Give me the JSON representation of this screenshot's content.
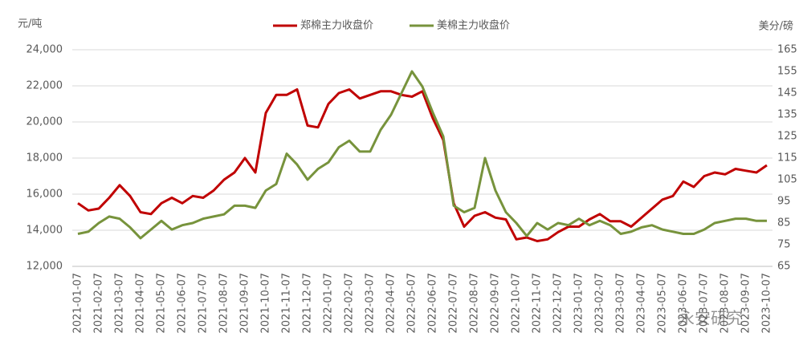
{
  "chart_data": {
    "type": "line",
    "y_label": "元/吨",
    "y2_label": "美分/磅",
    "watermark": "永安研究",
    "categories": [
      "2021-01-07",
      null,
      "2021-02-07",
      null,
      "2021-03-07",
      null,
      "2021-04-07",
      null,
      "2021-05-07",
      null,
      "2021-06-07",
      null,
      "2021-07-07",
      null,
      "2021-08-07",
      null,
      "2021-09-07",
      null,
      "2021-10-07",
      null,
      "2021-11-07",
      null,
      "2021-12-07",
      null,
      "2022-01-07",
      null,
      "2022-02-07",
      null,
      "2022-03-07",
      null,
      "2022-04-07",
      null,
      "2022-05-07",
      null,
      "2022-06-07",
      null,
      "2022-07-07",
      null,
      "2022-08-07",
      null,
      "2022-09-07",
      null,
      "2022-10-07",
      null,
      "2022-11-07",
      null,
      "2022-12-07",
      null,
      "2023-01-07",
      null,
      "2023-02-07",
      null,
      "2023-03-07",
      null,
      "2023-04-07",
      null,
      "2023-05-07",
      null,
      "2023-06-07",
      null,
      "2023-07-07",
      null,
      "2023-08-07",
      null,
      "2023-09-07",
      null,
      "2023-10-07"
    ],
    "series": [
      {
        "name": "郑棉主力收盘价",
        "color": "#c00000",
        "axis": "y",
        "values": [
          15500,
          15100,
          15200,
          15800,
          16500,
          15900,
          15000,
          14900,
          15500,
          15800,
          15500,
          15900,
          15800,
          16200,
          16800,
          17200,
          18000,
          17200,
          20500,
          21500,
          21500,
          21800,
          19800,
          19700,
          21000,
          21600,
          21800,
          21300,
          21500,
          21700,
          21700,
          21500,
          21400,
          21700,
          20200,
          19000,
          15500,
          14200,
          14800,
          15000,
          14700,
          14600,
          13500,
          13600,
          13400,
          13500,
          13900,
          14200,
          14200,
          14600,
          14900,
          14500,
          14500,
          14200,
          14700,
          15200,
          15700,
          15900,
          16700,
          16400,
          17000,
          17200,
          17100,
          17400,
          17300,
          17200,
          17600
        ]
      },
      {
        "name": "美棉主力收盘价",
        "color": "#77933c",
        "axis": "y2",
        "values": [
          80,
          81,
          85,
          88,
          87,
          83,
          78,
          82,
          86,
          82,
          84,
          85,
          87,
          88,
          89,
          93,
          93,
          92,
          100,
          103,
          117,
          112,
          105,
          110,
          113,
          120,
          123,
          118,
          118,
          128,
          135,
          145,
          155,
          148,
          136,
          125,
          93,
          90,
          92,
          115,
          100,
          90,
          85,
          79,
          85,
          82,
          85,
          84,
          87,
          84,
          86,
          84,
          80,
          81,
          83,
          84,
          82,
          81,
          80,
          80,
          82,
          85,
          86,
          87,
          87,
          86,
          86
        ]
      }
    ],
    "ylim": [
      12000,
      24000
    ],
    "yticks": [
      {
        "value": 12000,
        "label": "12,000"
      },
      {
        "value": 14000,
        "label": "14,000"
      },
      {
        "value": 16000,
        "label": "16,000"
      },
      {
        "value": 18000,
        "label": "18,000"
      },
      {
        "value": 20000,
        "label": "20,000"
      },
      {
        "value": 22000,
        "label": "22,000"
      },
      {
        "value": 24000,
        "label": "24,000"
      }
    ],
    "y2lim": [
      65,
      165
    ],
    "y2ticks": [
      65,
      75,
      85,
      95,
      105,
      115,
      125,
      135,
      145,
      155,
      165
    ],
    "grid": true,
    "legend": "top"
  }
}
